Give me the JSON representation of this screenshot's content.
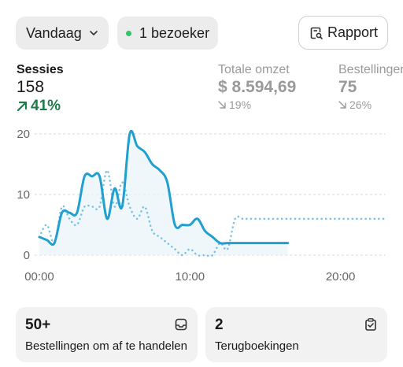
{
  "toolbar": {
    "date_label": "Vandaag",
    "visitors_label": "1 bezoeker",
    "report_label": "Rapport"
  },
  "metrics": [
    {
      "label": "Sessies",
      "value": "158",
      "change": "41%"
    },
    {
      "label": "Totale omzet",
      "value": "$ 8.594,69",
      "change": "19%"
    },
    {
      "label": "Bestellingen",
      "value": "75",
      "change": "26%"
    }
  ],
  "chart_data": {
    "type": "line",
    "x_tick_labels": [
      "00:00",
      "10:00",
      "20:00"
    ],
    "y_tick_labels": [
      "0",
      "10",
      "20"
    ],
    "ylim": [
      0,
      20
    ],
    "xlim": [
      0,
      23
    ],
    "grid": true,
    "series": [
      {
        "style": "solid",
        "color": "#21a0d0",
        "x": [
          0,
          0.5,
          1,
          1.5,
          2,
          2.5,
          3,
          3.5,
          4,
          4.5,
          5,
          5.5,
          6,
          6.5,
          7,
          7.5,
          8,
          8.5,
          9,
          9.5,
          10,
          10.5,
          11,
          11.5,
          12,
          12.5,
          13,
          13.5,
          14,
          14.5,
          15,
          15.5,
          16,
          16.5
        ],
        "y": [
          3,
          2.5,
          2,
          7,
          7,
          7,
          13,
          13,
          13,
          6,
          11,
          8,
          20,
          18,
          17,
          15,
          14,
          12,
          5,
          5,
          5,
          6,
          4,
          3,
          2,
          2,
          2,
          2,
          2,
          2,
          2,
          2,
          2,
          2
        ]
      },
      {
        "style": "dotted",
        "color": "#7fc3e3",
        "x": [
          0,
          0.5,
          1,
          1.5,
          2,
          2.5,
          3,
          3.5,
          4,
          4.5,
          5,
          5.5,
          6,
          6.5,
          7,
          7.5,
          8,
          8.5,
          9,
          9.5,
          10,
          10.5,
          11,
          11.5,
          12,
          12.5,
          13,
          13.5,
          14,
          14.5,
          15,
          15.5,
          16,
          16.5,
          17,
          17.5,
          18,
          18.5,
          19,
          19.5,
          20,
          20.5,
          21,
          21.5,
          22,
          22.5,
          23
        ],
        "y": [
          3,
          5,
          2,
          8,
          6,
          5,
          8,
          8,
          8,
          14,
          8,
          12,
          8,
          6,
          8,
          4,
          3,
          2,
          1,
          0,
          1,
          0,
          0,
          0,
          2,
          1,
          6,
          6,
          6,
          6,
          6,
          6,
          6,
          6,
          6,
          6,
          6,
          6,
          6,
          6,
          6,
          6,
          6,
          6,
          6,
          6,
          6
        ]
      }
    ]
  },
  "cards": [
    {
      "value": "50+",
      "label": "Bestellingen om af te handelen",
      "icon": "inbox-icon"
    },
    {
      "value": "2",
      "label": "Terugboekingen",
      "icon": "clipboard-check-icon"
    }
  ]
}
